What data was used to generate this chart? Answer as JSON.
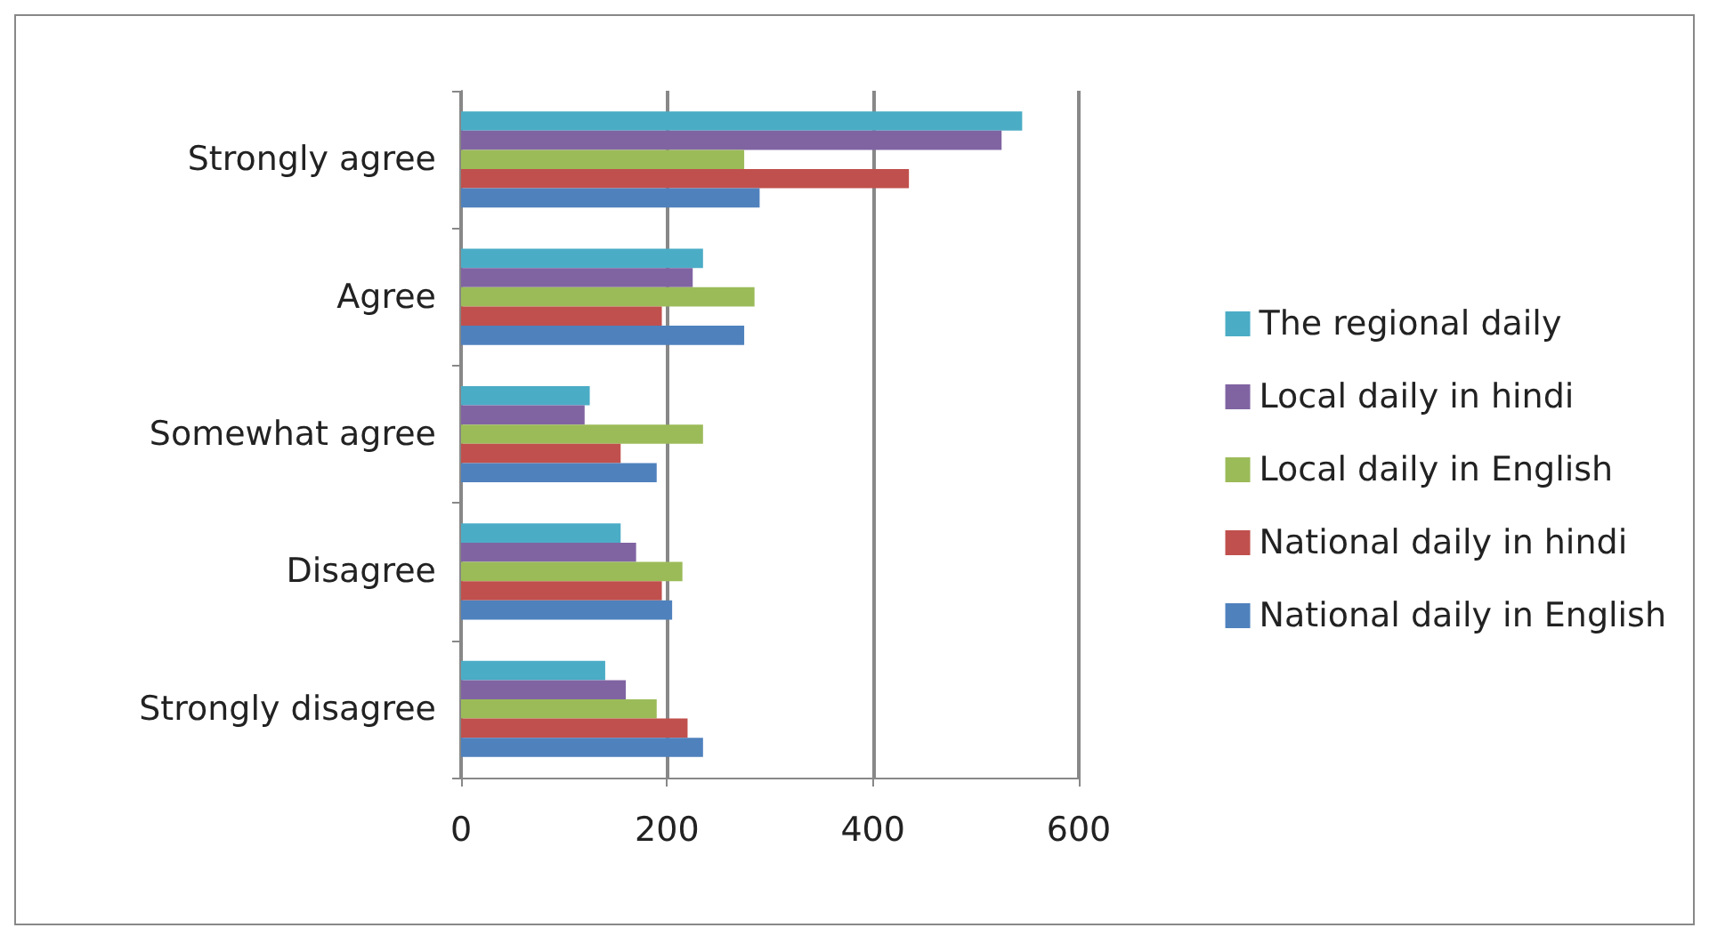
{
  "chart_data": {
    "type": "bar",
    "orientation": "horizontal",
    "categories": [
      "Strongly agree",
      "Agree",
      "Somewhat agree",
      "Disagree",
      "Strongly disagree"
    ],
    "series": [
      {
        "name": "The regional daily",
        "color": "#4bacc6",
        "values": [
          545,
          235,
          125,
          155,
          140
        ]
      },
      {
        "name": "Local daily in hindi",
        "color": "#8064a2",
        "values": [
          525,
          225,
          120,
          170,
          160
        ]
      },
      {
        "name": "Local daily in English",
        "color": "#9bbb59",
        "values": [
          275,
          285,
          235,
          215,
          190
        ]
      },
      {
        "name": "National daily in hindi",
        "color": "#c0504d",
        "values": [
          435,
          195,
          155,
          195,
          220
        ]
      },
      {
        "name": "National daily in English",
        "color": "#4f81bd",
        "values": [
          290,
          275,
          190,
          205,
          235
        ]
      }
    ],
    "xlim": [
      0,
      600
    ],
    "xticks": [
      0,
      200,
      400,
      600
    ],
    "grid": "x",
    "legend": "right"
  }
}
